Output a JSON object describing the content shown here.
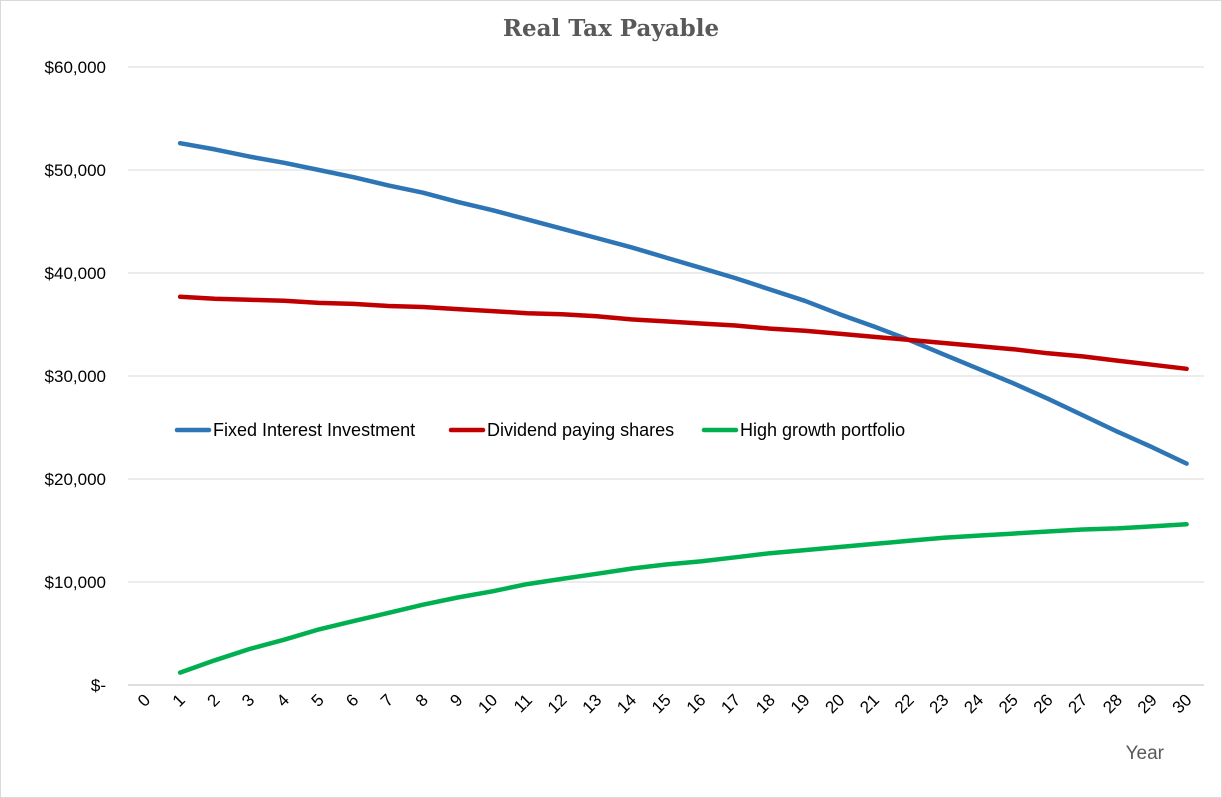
{
  "chart_data": {
    "type": "line",
    "title": "Real Tax Payable",
    "xlabel": "Year",
    "ylabel": "",
    "x_ticks": [
      0,
      1,
      2,
      3,
      4,
      5,
      6,
      7,
      8,
      9,
      10,
      11,
      12,
      13,
      14,
      15,
      16,
      17,
      18,
      19,
      20,
      21,
      22,
      23,
      24,
      25,
      26,
      27,
      28,
      29,
      30
    ],
    "x": [
      1,
      2,
      3,
      4,
      5,
      6,
      7,
      8,
      9,
      10,
      11,
      12,
      13,
      14,
      15,
      16,
      17,
      18,
      19,
      20,
      21,
      22,
      23,
      24,
      25,
      26,
      27,
      28,
      29,
      30
    ],
    "ylim": [
      0,
      60000
    ],
    "y_ticks": [
      0,
      10000,
      20000,
      30000,
      40000,
      50000,
      60000
    ],
    "y_tick_labels": [
      "$-",
      "$10,000",
      "$20,000",
      "$30,000",
      "$40,000",
      "$50,000",
      "$60,000"
    ],
    "grid": "horizontal",
    "legend_position": "inside-middle",
    "series": [
      {
        "name": "Fixed Interest Investment",
        "color": "#2E75B6",
        "values": [
          52600,
          52000,
          51300,
          50700,
          50000,
          49300,
          48500,
          47800,
          46900,
          46100,
          45200,
          44300,
          43400,
          42500,
          41500,
          40500,
          39500,
          38400,
          37300,
          36000,
          34800,
          33500,
          32100,
          30700,
          29300,
          27800,
          26200,
          24600,
          23100,
          21500
        ]
      },
      {
        "name": "Dividend paying shares",
        "color": "#C00000",
        "values": [
          37700,
          37500,
          37400,
          37300,
          37100,
          37000,
          36800,
          36700,
          36500,
          36300,
          36100,
          36000,
          35800,
          35500,
          35300,
          35100,
          34900,
          34600,
          34400,
          34100,
          33800,
          33500,
          33200,
          32900,
          32600,
          32200,
          31900,
          31500,
          31100,
          30700
        ]
      },
      {
        "name": "High growth portfolio",
        "color": "#00B050",
        "values": [
          1200,
          2400,
          3500,
          4400,
          5400,
          6200,
          7000,
          7800,
          8500,
          9100,
          9800,
          10300,
          10800,
          11300,
          11700,
          12000,
          12400,
          12800,
          13100,
          13400,
          13700,
          14000,
          14300,
          14500,
          14700,
          14900,
          15100,
          15200,
          15400,
          15600
        ]
      }
    ]
  }
}
